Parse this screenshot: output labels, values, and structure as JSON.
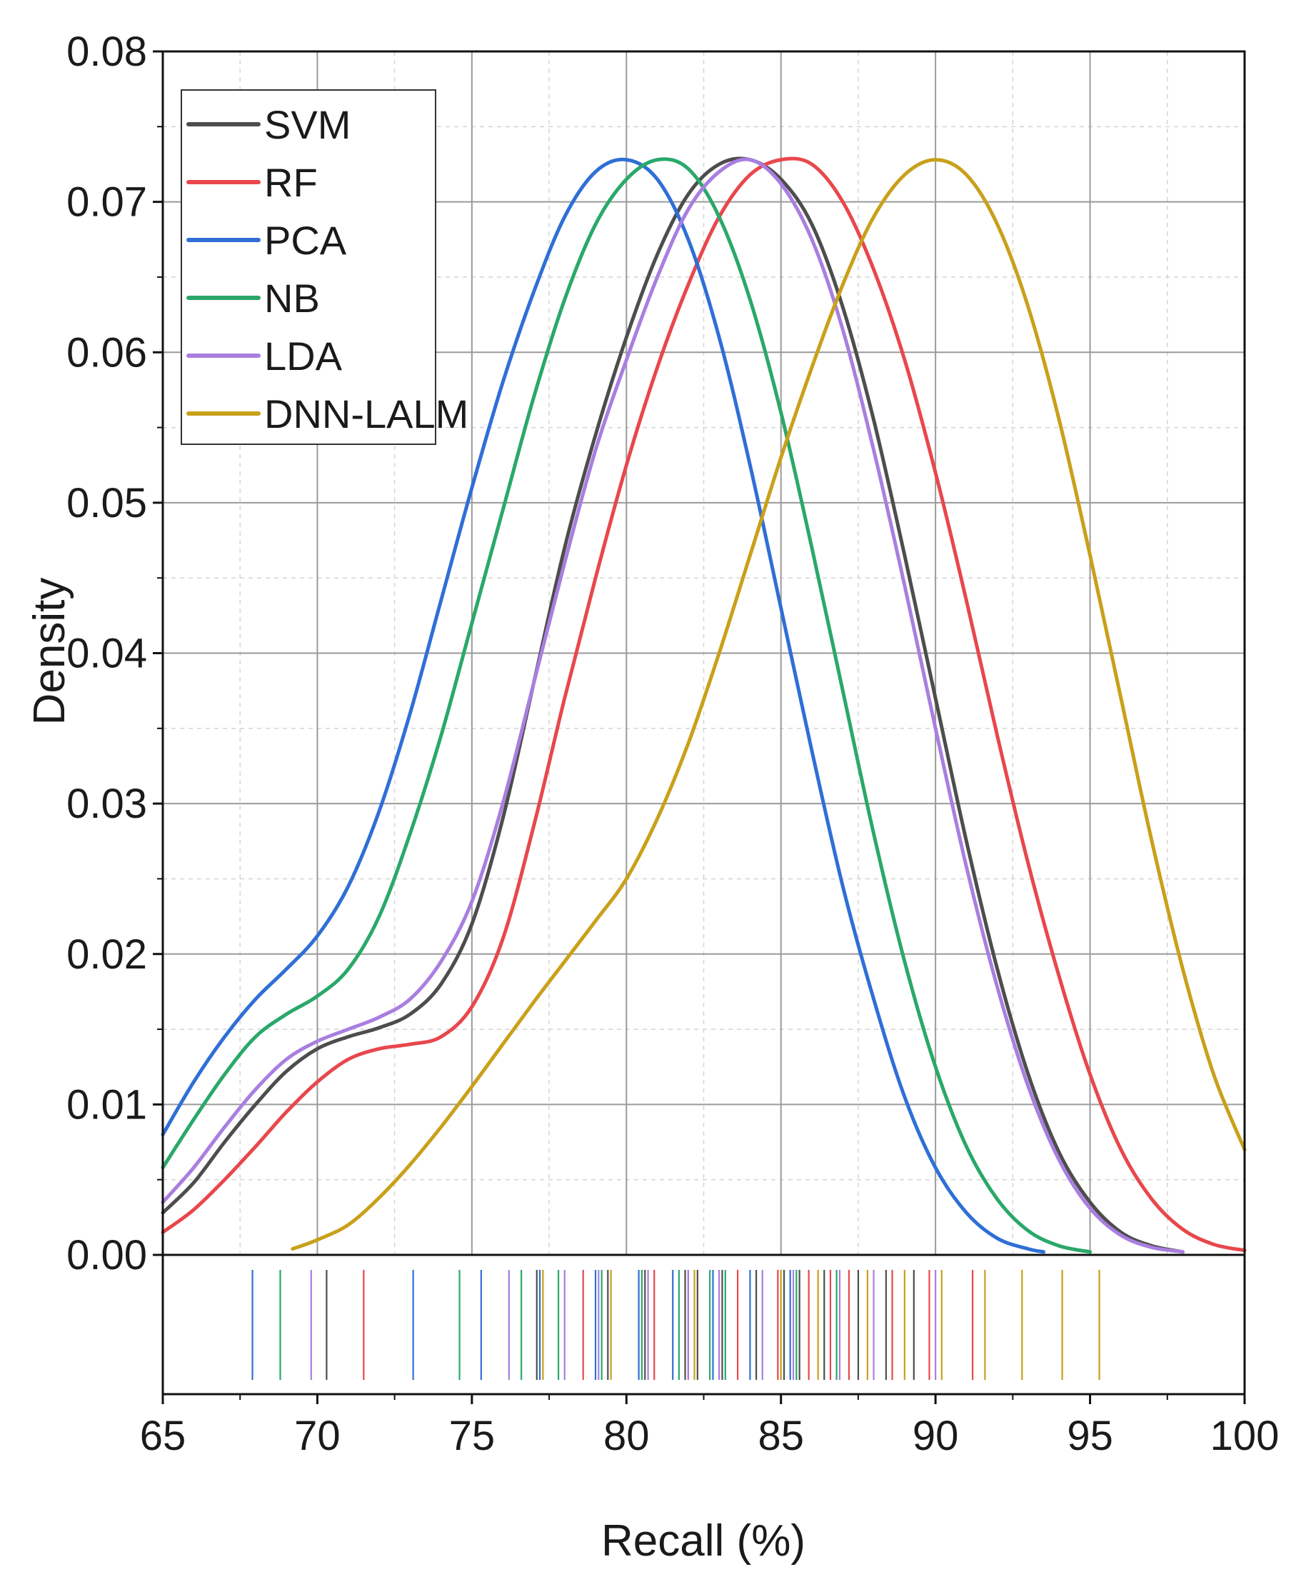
{
  "chart_data": {
    "type": "line",
    "title": "",
    "xlabel": "Recall (%)",
    "ylabel": "Density",
    "xlim": [
      65,
      100
    ],
    "ylim": [
      0,
      0.08
    ],
    "x_ticks": [
      "65",
      "70",
      "75",
      "80",
      "85",
      "90",
      "95",
      "100"
    ],
    "y_ticks": [
      "0.00",
      "0.01",
      "0.02",
      "0.03",
      "0.04",
      "0.05",
      "0.06",
      "0.07",
      "0.08"
    ],
    "grid": true,
    "legend_position": "top-left",
    "series": [
      {
        "name": "SVM",
        "color": "#4d4d4d",
        "x": [
          65,
          66,
          67,
          68,
          69,
          70,
          71,
          72,
          73,
          74,
          75,
          76,
          77,
          78,
          79,
          80,
          81,
          82,
          83,
          84,
          85,
          86,
          87,
          88,
          89,
          90,
          91,
          92,
          93,
          94,
          95,
          96,
          97,
          98
        ],
        "y": [
          0.0028,
          0.0048,
          0.0075,
          0.01,
          0.0122,
          0.0137,
          0.0145,
          0.0151,
          0.016,
          0.018,
          0.022,
          0.029,
          0.038,
          0.047,
          0.0545,
          0.061,
          0.0665,
          0.0705,
          0.0725,
          0.0728,
          0.0715,
          0.0685,
          0.063,
          0.0555,
          0.0465,
          0.037,
          0.0275,
          0.019,
          0.012,
          0.0068,
          0.0035,
          0.0015,
          0.0006,
          0.0002
        ]
      },
      {
        "name": "RF",
        "color": "#e8474c",
        "x": [
          65,
          66,
          67,
          68,
          69,
          70,
          71,
          72,
          73,
          74,
          75,
          76,
          77,
          78,
          79,
          80,
          81,
          82,
          83,
          84,
          85,
          86,
          87,
          88,
          89,
          90,
          91,
          92,
          93,
          94,
          95,
          96,
          97,
          98,
          99,
          100
        ],
        "y": [
          0.0015,
          0.003,
          0.005,
          0.0072,
          0.0095,
          0.0115,
          0.013,
          0.0137,
          0.014,
          0.0145,
          0.0165,
          0.021,
          0.0285,
          0.037,
          0.045,
          0.0525,
          0.059,
          0.0645,
          0.069,
          0.0718,
          0.0728,
          0.0725,
          0.07,
          0.0655,
          0.0595,
          0.052,
          0.0435,
          0.0345,
          0.026,
          0.0185,
          0.012,
          0.007,
          0.0037,
          0.0017,
          0.0007,
          0.0003
        ]
      },
      {
        "name": "PCA",
        "color": "#2f6fd6",
        "x": [
          65,
          66,
          67,
          68,
          69,
          70,
          71,
          72,
          73,
          74,
          75,
          76,
          77,
          78,
          79,
          80,
          81,
          82,
          83,
          84,
          85,
          86,
          87,
          88,
          89,
          90,
          91,
          92,
          93,
          93.5
        ],
        "y": [
          0.008,
          0.0115,
          0.0145,
          0.017,
          0.019,
          0.0212,
          0.0245,
          0.0295,
          0.036,
          0.0435,
          0.051,
          0.058,
          0.064,
          0.069,
          0.072,
          0.0728,
          0.0715,
          0.0675,
          0.061,
          0.0525,
          0.043,
          0.0335,
          0.0245,
          0.017,
          0.0105,
          0.0058,
          0.0028,
          0.0011,
          0.0004,
          0.0002
        ]
      },
      {
        "name": "NB",
        "color": "#2aa86a",
        "x": [
          65,
          66,
          67,
          68,
          69,
          70,
          71,
          72,
          73,
          74,
          75,
          76,
          77,
          78,
          79,
          80,
          81,
          82,
          83,
          84,
          85,
          86,
          87,
          88,
          89,
          90,
          91,
          92,
          93,
          94,
          95
        ],
        "y": [
          0.0058,
          0.009,
          0.012,
          0.0145,
          0.016,
          0.0172,
          0.019,
          0.0225,
          0.028,
          0.0345,
          0.042,
          0.0495,
          0.057,
          0.0635,
          0.0685,
          0.0715,
          0.0728,
          0.0722,
          0.069,
          0.0635,
          0.056,
          0.047,
          0.0375,
          0.028,
          0.0195,
          0.0125,
          0.0072,
          0.0037,
          0.0016,
          0.0006,
          0.0002
        ]
      },
      {
        "name": "LDA",
        "color": "#a97ee0",
        "x": [
          65,
          66,
          67,
          68,
          69,
          70,
          71,
          72,
          73,
          74,
          75,
          76,
          77,
          78,
          79,
          80,
          81,
          82,
          83,
          84,
          85,
          86,
          87,
          88,
          89,
          90,
          91,
          92,
          93,
          94,
          95,
          96,
          97,
          98
        ],
        "y": [
          0.0035,
          0.0058,
          0.0085,
          0.011,
          0.013,
          0.0142,
          0.015,
          0.0158,
          0.017,
          0.0195,
          0.0235,
          0.03,
          0.038,
          0.046,
          0.0535,
          0.0595,
          0.065,
          0.0695,
          0.072,
          0.0728,
          0.0712,
          0.0675,
          0.0615,
          0.0535,
          0.0445,
          0.035,
          0.0258,
          0.0178,
          0.0112,
          0.0063,
          0.0031,
          0.0013,
          0.0005,
          0.0002
        ]
      },
      {
        "name": "DNN-LALM",
        "color": "#c9a01a",
        "x": [
          69.2,
          70,
          71,
          72,
          73,
          74,
          75,
          76,
          77,
          78,
          79,
          80,
          81,
          82,
          83,
          84,
          85,
          86,
          87,
          88,
          89,
          90,
          91,
          92,
          93,
          94,
          95,
          96,
          97,
          98,
          99,
          100
        ],
        "y": [
          0.0004,
          0.001,
          0.002,
          0.0038,
          0.006,
          0.0085,
          0.0112,
          0.014,
          0.0168,
          0.0195,
          0.0222,
          0.025,
          0.029,
          0.034,
          0.04,
          0.0465,
          0.053,
          0.059,
          0.0645,
          0.069,
          0.0718,
          0.0728,
          0.0718,
          0.0685,
          0.063,
          0.0555,
          0.0465,
          0.037,
          0.0275,
          0.019,
          0.012,
          0.007
        ]
      }
    ],
    "rug": [
      {
        "series": "SVM",
        "x": [
          70.3,
          77.1,
          79.4,
          80.6,
          81.9,
          82.3,
          83.1,
          84.2,
          85.1,
          85.6,
          86.4,
          87.5,
          88.4,
          89.3
        ]
      },
      {
        "series": "RF",
        "x": [
          71.5,
          78.6,
          80.9,
          82.0,
          83.6,
          84.9,
          85.9,
          86.6,
          87.2,
          88.6,
          89.8,
          91.2
        ]
      },
      {
        "series": "PCA",
        "x": [
          67.9,
          73.1,
          75.3,
          77.2,
          79.0,
          80.4,
          81.5,
          82.8,
          84.0,
          85.3
        ]
      },
      {
        "series": "NB",
        "x": [
          68.8,
          74.6,
          76.6,
          77.8,
          79.2,
          80.5,
          81.7,
          82.7,
          83.2,
          85.5,
          86.8
        ]
      },
      {
        "series": "LDA",
        "x": [
          69.8,
          76.2,
          78.0,
          79.1,
          80.7,
          82.0,
          83.0,
          84.4,
          85.4,
          86.9,
          88.0,
          90.0
        ]
      },
      {
        "series": "DNN-LALM",
        "x": [
          77.3,
          79.5,
          82.2,
          85.0,
          86.2,
          87.8,
          89.0,
          90.2,
          91.6,
          92.8,
          94.1,
          95.3
        ]
      }
    ]
  }
}
